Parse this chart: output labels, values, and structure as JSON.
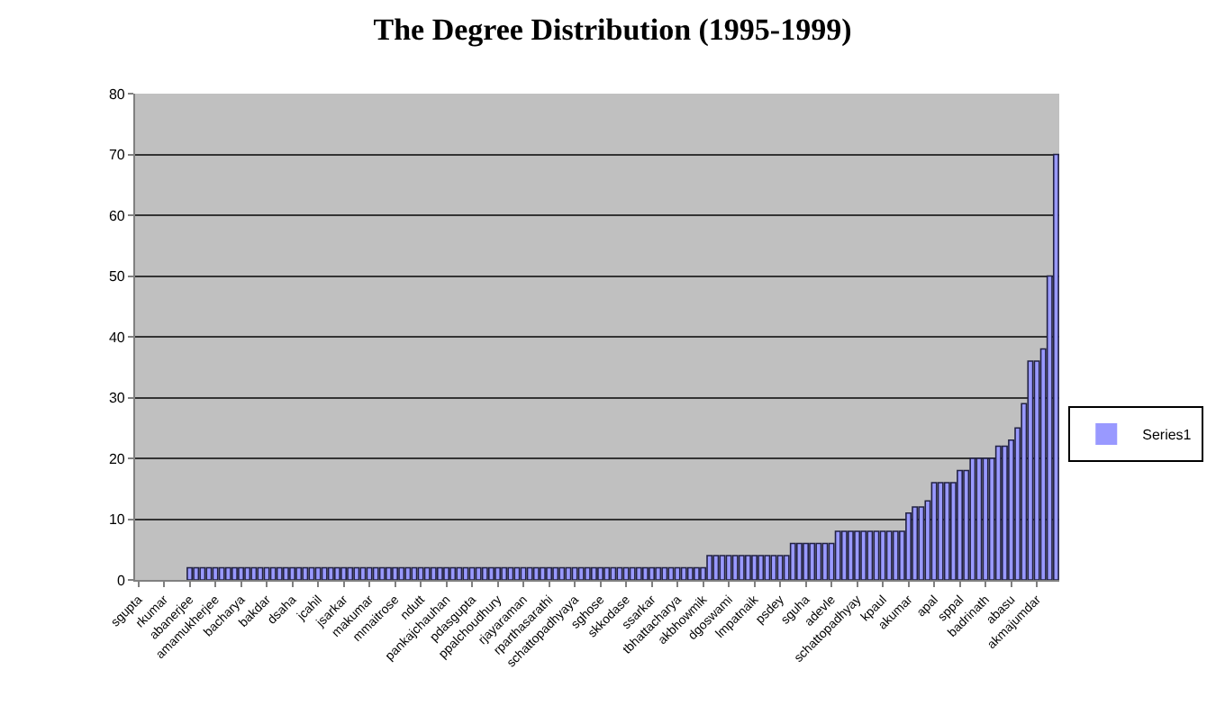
{
  "chart_data": {
    "type": "bar",
    "title": "The Degree Distribution (1995-1999)",
    "categories": [
      "sgupta",
      null,
      null,
      null,
      "rkumar",
      null,
      null,
      null,
      "abanerjee",
      null,
      null,
      null,
      "amamukherjee",
      null,
      null,
      null,
      "bacharya",
      null,
      null,
      null,
      "bakdar",
      null,
      null,
      null,
      "dsaha",
      null,
      null,
      null,
      "jcahil",
      null,
      null,
      null,
      "jsarkar",
      null,
      null,
      null,
      "makumar",
      null,
      null,
      null,
      "mmaitrose",
      null,
      null,
      null,
      "ndutt",
      null,
      null,
      null,
      "pankajchauhan",
      null,
      null,
      null,
      "pdasgupta",
      null,
      null,
      null,
      "ppalchoudhury",
      null,
      null,
      null,
      "rjayaraman",
      null,
      null,
      null,
      "rparthasarathi",
      null,
      null,
      null,
      "schattopadhyaya",
      null,
      null,
      null,
      "sghose",
      null,
      null,
      null,
      "skkodase",
      null,
      null,
      null,
      "ssarkar",
      null,
      null,
      null,
      "tbhattacharya",
      null,
      null,
      null,
      "akbhowmik",
      null,
      null,
      null,
      "dgoswami",
      null,
      null,
      null,
      "lmpatnaik",
      null,
      null,
      null,
      "psdey",
      null,
      null,
      null,
      "sguha",
      null,
      null,
      null,
      "adevle",
      null,
      null,
      null,
      "schattopadhyay",
      null,
      null,
      null,
      "kpaul",
      null,
      null,
      null,
      "akumar",
      null,
      null,
      null,
      "apal",
      null,
      null,
      null,
      "sppal",
      null,
      null,
      null,
      "badrinath",
      null,
      null,
      null,
      "abasu",
      null,
      null,
      null,
      "akmajumdar",
      null,
      null,
      null
    ],
    "series": [
      {
        "name": "Series1",
        "color": "#9999ff",
        "values": [
          0,
          0,
          0,
          0,
          0,
          0,
          0,
          0,
          2,
          2,
          2,
          2,
          2,
          2,
          2,
          2,
          2,
          2,
          2,
          2,
          2,
          2,
          2,
          2,
          2,
          2,
          2,
          2,
          2,
          2,
          2,
          2,
          2,
          2,
          2,
          2,
          2,
          2,
          2,
          2,
          2,
          2,
          2,
          2,
          2,
          2,
          2,
          2,
          2,
          2,
          2,
          2,
          2,
          2,
          2,
          2,
          2,
          2,
          2,
          2,
          2,
          2,
          2,
          2,
          2,
          2,
          2,
          2,
          2,
          2,
          2,
          2,
          2,
          2,
          2,
          2,
          2,
          2,
          2,
          2,
          2,
          2,
          2,
          2,
          2,
          2,
          2,
          2,
          2,
          4,
          4,
          4,
          4,
          4,
          4,
          4,
          4,
          4,
          4,
          4,
          4,
          4,
          6,
          6,
          6,
          6,
          6,
          6,
          6,
          8,
          8,
          8,
          8,
          8,
          8,
          8,
          8,
          8,
          8,
          8,
          11,
          12,
          12,
          13,
          16,
          16,
          16,
          16,
          18,
          18,
          20,
          20,
          20,
          20,
          22,
          22,
          23,
          25,
          29,
          36,
          36,
          38,
          50,
          70
        ]
      }
    ],
    "ylim": [
      0,
      80
    ],
    "yticks": [
      0,
      10,
      20,
      30,
      40,
      50,
      60,
      70,
      80
    ],
    "grid": "y",
    "legend": "right"
  }
}
